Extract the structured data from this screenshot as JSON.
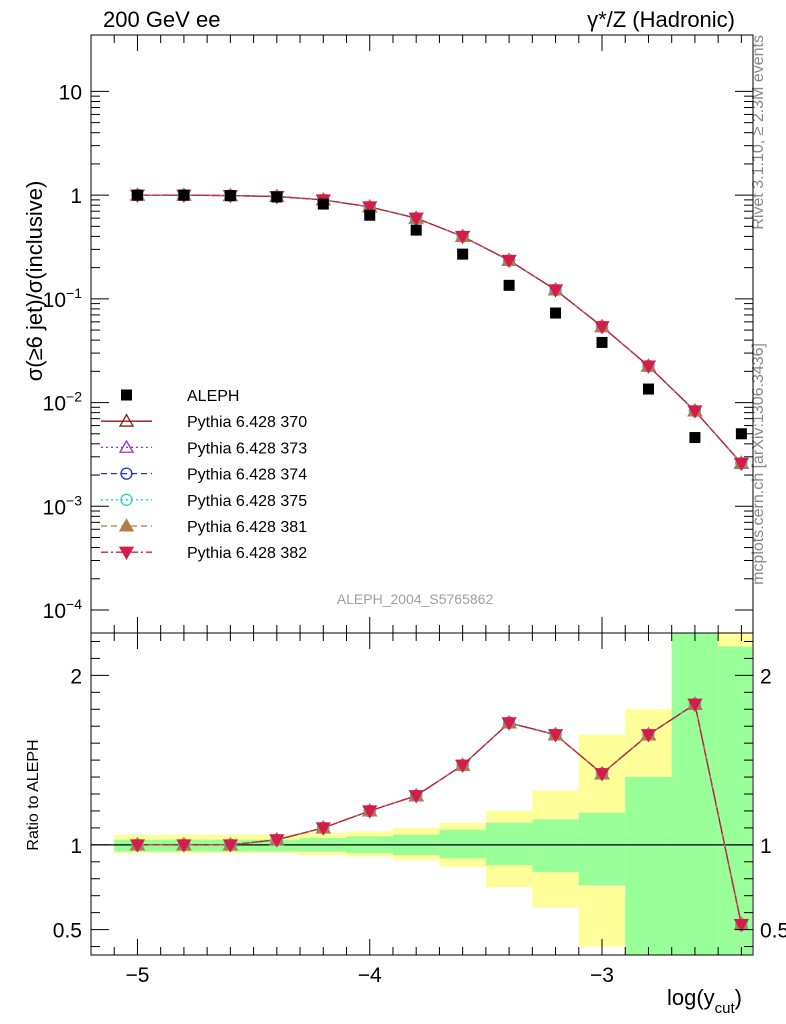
{
  "header": {
    "left": "200 GeV ee",
    "right": "γ*/Z (Hadronic)"
  },
  "side_labels": {
    "rivet": "Rivet 3.1.10, ≥ 2.3M events",
    "mcplots": "mcplots.cern.ch [arXiv:1306.3436]"
  },
  "watermark": "ALEPH_2004_S5765862",
  "chart_data": [
    {
      "type": "scatter",
      "title": "",
      "ylabel": "σ(≥6 jet)/σ(inclusive)",
      "xlabel": "",
      "y_scale": "log",
      "xlim": [
        -5.2,
        -2.35
      ],
      "ylim": [
        6e-05,
        35
      ],
      "ytick_values": [
        0.0001,
        0.001,
        0.01,
        0.1,
        1,
        10
      ],
      "ytick_labels": [
        {
          "base": "10",
          "exp": "−4"
        },
        {
          "base": "10",
          "exp": "−3"
        },
        {
          "base": "10",
          "exp": "−2"
        },
        {
          "base": "10",
          "exp": "−1"
        },
        {
          "base": "1",
          "exp": ""
        },
        {
          "base": "10",
          "exp": ""
        }
      ],
      "legend_position": "left-middle",
      "x": [
        -5.0,
        -4.8,
        -4.6,
        -4.4,
        -4.2,
        -4.0,
        -3.8,
        -3.6,
        -3.4,
        -3.2,
        -3.0,
        -2.8,
        -2.6,
        -2.4
      ],
      "data": {
        "name": "ALEPH",
        "values": [
          1.0,
          1.0,
          0.99,
          0.96,
          0.82,
          0.64,
          0.46,
          0.27,
          0.135,
          0.073,
          0.038,
          0.0135,
          0.0046,
          0.005
        ]
      },
      "series": [
        {
          "name": "Pythia 6.428 370",
          "color": "#8b1a1a",
          "dash": "",
          "marker": "triangle-open",
          "values": [
            1.0,
            1.0,
            0.99,
            0.97,
            0.9,
            0.77,
            0.6,
            0.4,
            0.235,
            0.122,
            0.054,
            0.0225,
            0.0083,
            0.0026
          ]
        },
        {
          "name": "Pythia 6.428 373",
          "color": "#9b30d0",
          "dash": "2,3",
          "marker": "triangle-open",
          "values": [
            1.0,
            1.0,
            0.99,
            0.97,
            0.9,
            0.77,
            0.6,
            0.4,
            0.235,
            0.122,
            0.054,
            0.0225,
            0.0083,
            0.0026
          ]
        },
        {
          "name": "Pythia 6.428 374",
          "color": "#2b2bd8",
          "dash": "6,4",
          "marker": "circle-open",
          "values": [
            1.0,
            1.0,
            0.99,
            0.97,
            0.9,
            0.77,
            0.6,
            0.4,
            0.235,
            0.122,
            0.054,
            0.0225,
            0.0083,
            0.0026
          ]
        },
        {
          "name": "Pythia 6.428 375",
          "color": "#22d4c0",
          "dash": "2,3",
          "marker": "circle-open",
          "values": [
            1.0,
            1.0,
            0.99,
            0.97,
            0.9,
            0.77,
            0.6,
            0.4,
            0.235,
            0.122,
            0.054,
            0.0225,
            0.0083,
            0.0026
          ]
        },
        {
          "name": "Pythia 6.428 381",
          "color": "#b07c4a",
          "dash": "6,4",
          "marker": "triangle-filled",
          "values": [
            1.0,
            1.0,
            0.99,
            0.97,
            0.9,
            0.77,
            0.6,
            0.4,
            0.235,
            0.122,
            0.054,
            0.0225,
            0.0083,
            0.0026
          ]
        },
        {
          "name": "Pythia 6.428 382",
          "color": "#d81b4a",
          "dash": "7,3,2,3",
          "marker": "triangle-down-filled",
          "values": [
            1.0,
            1.0,
            0.99,
            0.97,
            0.9,
            0.77,
            0.6,
            0.4,
            0.235,
            0.122,
            0.054,
            0.0225,
            0.0083,
            0.0026
          ]
        }
      ]
    },
    {
      "type": "line",
      "title": "",
      "ylabel": "Ratio to ALEPH",
      "xlabel": "log(y_cut)",
      "xlabel_main": "log(y",
      "xlabel_sub": "cut",
      "xlabel_close": ")",
      "ylim": [
        0.35,
        2.25
      ],
      "ytick_values": [
        0.5,
        1,
        2
      ],
      "ytick_labels": [
        "0.5",
        "1",
        "2"
      ],
      "xlim": [
        -5.2,
        -2.35
      ],
      "xtick_values": [
        -5,
        -4,
        -3
      ],
      "xtick_labels": [
        "−5",
        "−4",
        "−3"
      ],
      "reference_line": 1.0,
      "x": [
        -5.0,
        -4.8,
        -4.6,
        -4.4,
        -4.2,
        -4.0,
        -3.8,
        -3.6,
        -3.4,
        -3.2,
        -3.0,
        -2.8,
        -2.6,
        -2.4
      ],
      "bin_edges": [
        -5.1,
        -4.9,
        -4.7,
        -4.5,
        -4.3,
        -4.1,
        -3.9,
        -3.7,
        -3.5,
        -3.3,
        -3.1,
        -2.9,
        -2.7,
        -2.5,
        -2.3
      ],
      "band_yellow": {
        "color": "#ffff99",
        "low": [
          0.95,
          0.95,
          0.95,
          0.95,
          0.94,
          0.93,
          0.91,
          0.87,
          0.75,
          0.63,
          0.4,
          0.3,
          0.3,
          0.3
        ],
        "high": [
          1.06,
          1.06,
          1.06,
          1.06,
          1.07,
          1.08,
          1.1,
          1.13,
          1.2,
          1.32,
          1.65,
          1.8,
          2.3,
          2.3
        ]
      },
      "band_green": {
        "color": "#99ff99",
        "low": [
          0.96,
          0.96,
          0.96,
          0.96,
          0.96,
          0.95,
          0.94,
          0.92,
          0.88,
          0.84,
          0.76,
          0.3,
          0.3,
          0.3
        ],
        "high": [
          1.03,
          1.03,
          1.03,
          1.03,
          1.04,
          1.05,
          1.06,
          1.09,
          1.13,
          1.15,
          1.19,
          1.4,
          2.25,
          2.17
        ]
      },
      "series_values": [
        1.0,
        1.0,
        1.0,
        1.03,
        1.1,
        1.2,
        1.29,
        1.47,
        1.72,
        1.65,
        1.42,
        1.65,
        1.83,
        0.53
      ]
    }
  ]
}
